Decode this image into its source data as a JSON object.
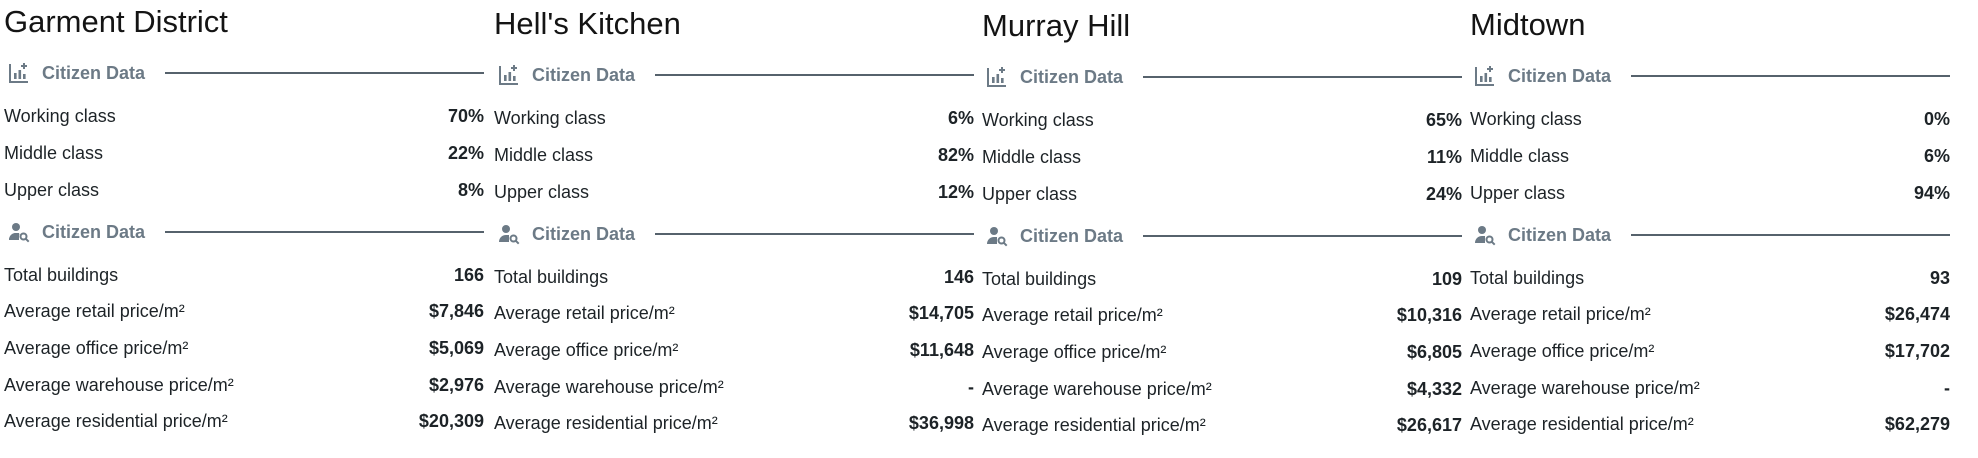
{
  "districts": [
    {
      "name": "Garment District",
      "class_section": {
        "icon": "chart-plus-icon",
        "title": "Citizen Data",
        "rows": [
          {
            "label": "Working class",
            "value": "70%"
          },
          {
            "label": "Middle class",
            "value": "22%"
          },
          {
            "label": "Upper class",
            "value": "8%"
          }
        ]
      },
      "stats_section": {
        "icon": "user-search-icon",
        "title": "Citizen Data",
        "rows": [
          {
            "label": "Total buildings",
            "value": "166"
          },
          {
            "label": "Average retail price/m²",
            "value": "$7,846"
          },
          {
            "label": "Average office price/m²",
            "value": "$5,069"
          },
          {
            "label": "Average warehouse price/m²",
            "value": "$2,976"
          },
          {
            "label": "Average residential price/m²",
            "value": "$20,309"
          }
        ]
      }
    },
    {
      "name": "Hell's Kitchen",
      "class_section": {
        "icon": "chart-plus-icon",
        "title": "Citizen Data",
        "rows": [
          {
            "label": "Working class",
            "value": "6%"
          },
          {
            "label": "Middle class",
            "value": "82%"
          },
          {
            "label": "Upper class",
            "value": "12%"
          }
        ]
      },
      "stats_section": {
        "icon": "user-search-icon",
        "title": "Citizen Data",
        "rows": [
          {
            "label": "Total buildings",
            "value": "146"
          },
          {
            "label": "Average retail price/m²",
            "value": "$14,705"
          },
          {
            "label": "Average office price/m²",
            "value": "$11,648"
          },
          {
            "label": "Average warehouse price/m²",
            "value": "-"
          },
          {
            "label": "Average residential price/m²",
            "value": "$36,998"
          }
        ]
      }
    },
    {
      "name": "Murray Hill",
      "class_section": {
        "icon": "chart-plus-icon",
        "title": "Citizen Data",
        "rows": [
          {
            "label": "Working class",
            "value": "65%"
          },
          {
            "label": "Middle class",
            "value": "11%"
          },
          {
            "label": "Upper class",
            "value": "24%"
          }
        ]
      },
      "stats_section": {
        "icon": "user-search-icon",
        "title": "Citizen Data",
        "rows": [
          {
            "label": "Total buildings",
            "value": "109"
          },
          {
            "label": "Average retail price/m²",
            "value": "$10,316"
          },
          {
            "label": "Average office price/m²",
            "value": "$6,805"
          },
          {
            "label": "Average warehouse price/m²",
            "value": "$4,332"
          },
          {
            "label": "Average residential price/m²",
            "value": "$26,617"
          }
        ]
      }
    },
    {
      "name": "Midtown",
      "class_section": {
        "icon": "chart-plus-icon",
        "title": "Citizen Data",
        "rows": [
          {
            "label": "Working class",
            "value": "0%"
          },
          {
            "label": "Middle class",
            "value": "6%"
          },
          {
            "label": "Upper class",
            "value": "94%"
          }
        ]
      },
      "stats_section": {
        "icon": "user-search-icon",
        "title": "Citizen Data",
        "rows": [
          {
            "label": "Total buildings",
            "value": "93"
          },
          {
            "label": "Average retail price/m²",
            "value": "$26,474"
          },
          {
            "label": "Average office price/m²",
            "value": "$17,702"
          },
          {
            "label": "Average warehouse price/m²",
            "value": "-"
          },
          {
            "label": "Average residential price/m²",
            "value": "$62,279"
          }
        ]
      }
    }
  ],
  "colors": {
    "section_title": "#6c7a86",
    "rule": "#56626c",
    "text": "#1d2327"
  }
}
